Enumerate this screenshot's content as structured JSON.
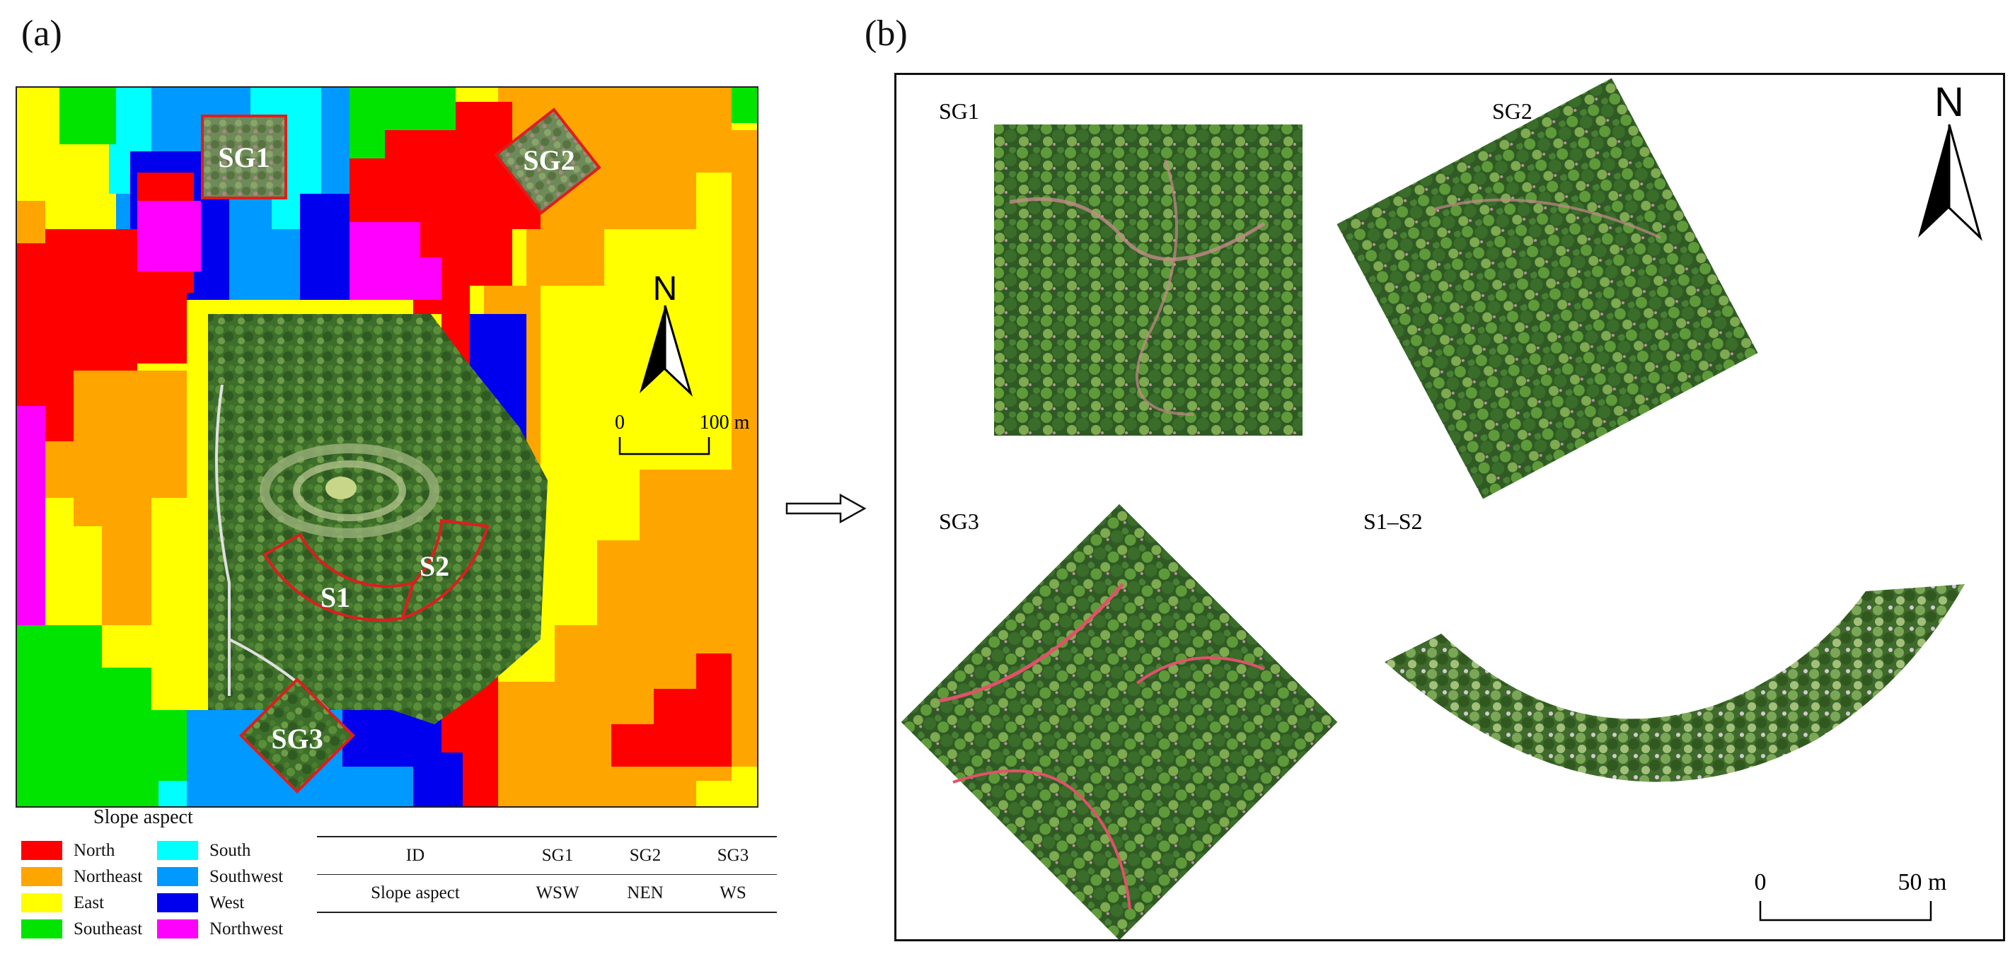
{
  "panel_a": {
    "label": "(a)",
    "site_labels": [
      "SG1",
      "SG2",
      "SG3",
      "S1",
      "S2"
    ],
    "north_label": "N",
    "scale_zero": "0",
    "scale_end": "100 m",
    "legend": {
      "title": "Slope aspect",
      "items": [
        {
          "label": "North",
          "color": "#ff0000"
        },
        {
          "label": "Northeast",
          "color": "#ffa500"
        },
        {
          "label": "East",
          "color": "#ffff00"
        },
        {
          "label": "Southeast",
          "color": "#00e400"
        },
        {
          "label": "South",
          "color": "#00ffff"
        },
        {
          "label": "Southwest",
          "color": "#0099ff"
        },
        {
          "label": "West",
          "color": "#0000ee"
        },
        {
          "label": "Northwest",
          "color": "#ff00ff"
        }
      ]
    },
    "table": {
      "header": [
        "ID",
        "SG1",
        "SG2",
        "SG3"
      ],
      "row": [
        "Slope aspect",
        "WSW",
        "NEN",
        "WS"
      ]
    }
  },
  "panel_b": {
    "label": "(b)",
    "site_labels": [
      "SG1",
      "SG2",
      "SG3",
      "S1–S2"
    ],
    "north_label": "N",
    "scale_zero": "0",
    "scale_end": "50 m"
  }
}
